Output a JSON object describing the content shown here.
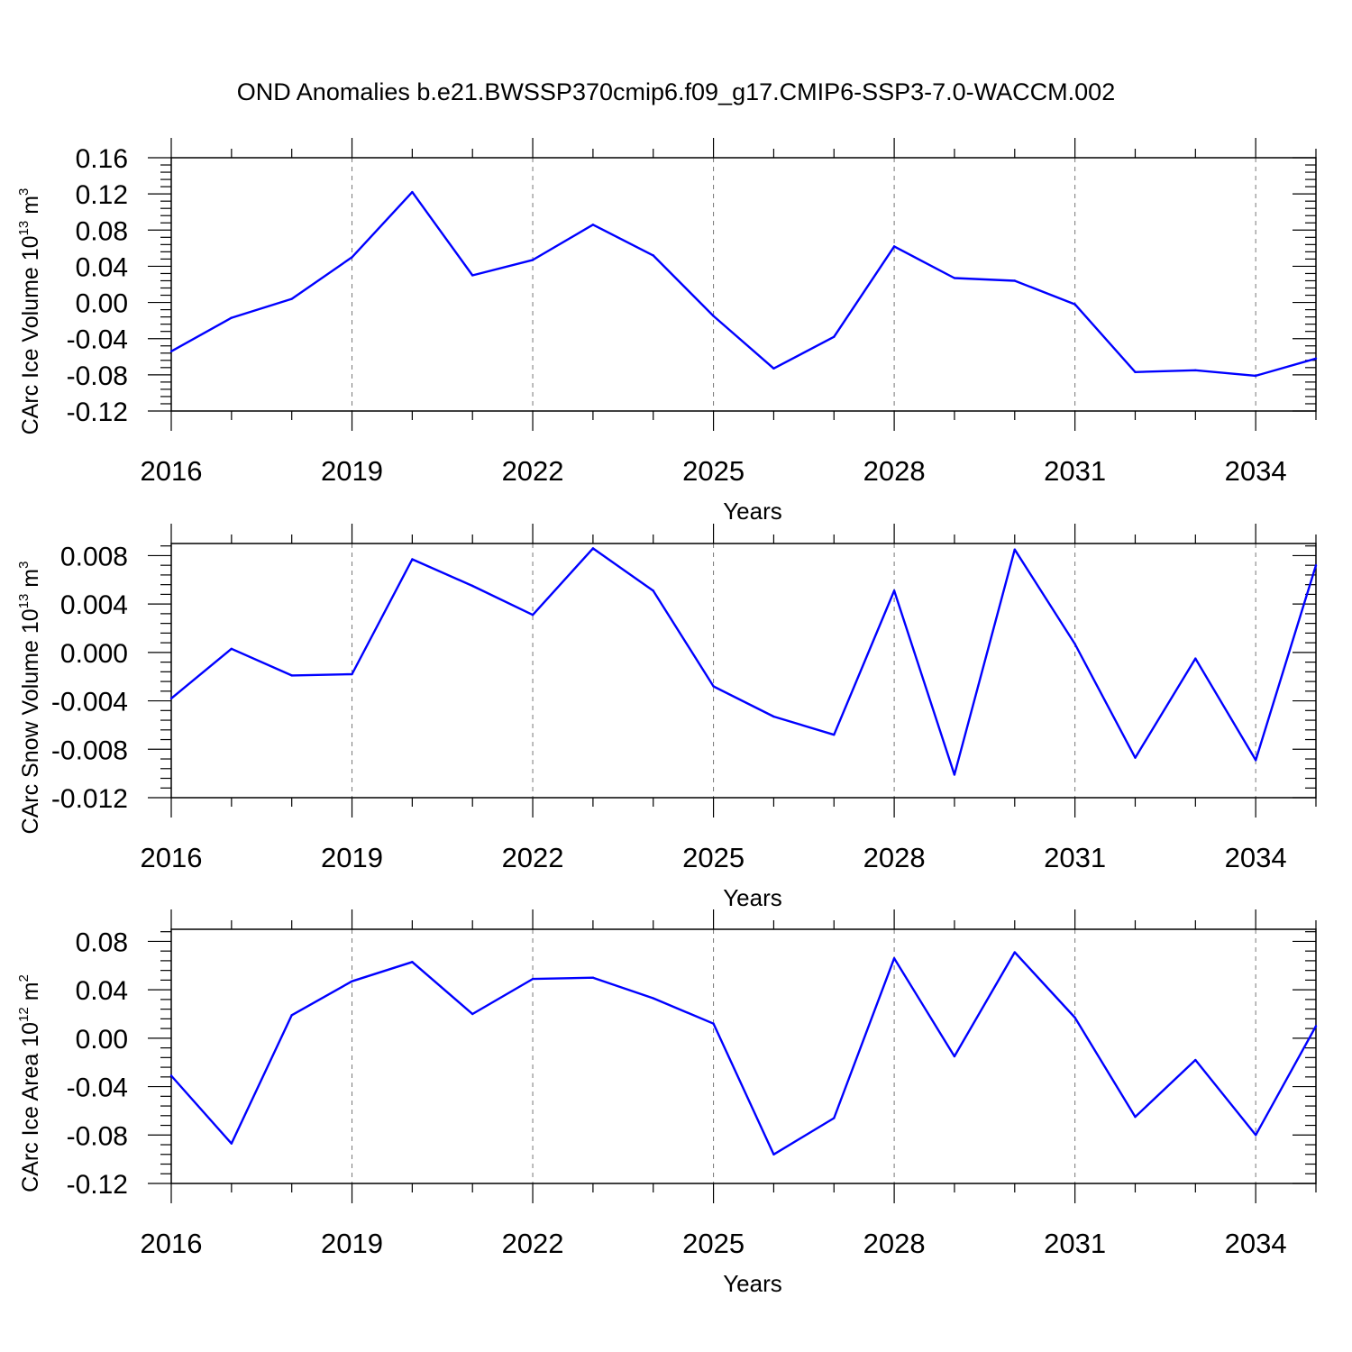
{
  "title": "OND Anomalies b.e21.BWSSP370cmip6.f09_g17.CMIP6-SSP3-7.0-WACCM.002",
  "line_color": "#0000ff",
  "chart_data": [
    {
      "type": "line",
      "ylabel_prefix": "CArc Ice Volume 10",
      "ylabel_exp": "13",
      "ylabel_unit": " m",
      "ylabel_unit_exp": "3",
      "xlabel": "Years",
      "xlim": [
        2016,
        2035
      ],
      "ylim": [
        -0.12,
        0.16
      ],
      "yticks": [
        -0.12,
        -0.08,
        -0.04,
        0.0,
        0.04,
        0.08,
        0.12,
        0.16
      ],
      "ytick_labels": [
        "-0.12",
        "-0.08",
        "-0.04",
        "0.00",
        "0.04",
        "0.08",
        "0.12",
        "0.16"
      ],
      "xticks": [
        2016,
        2019,
        2022,
        2025,
        2028,
        2031,
        2034
      ],
      "xtick_labels": [
        "2016",
        "2019",
        "2022",
        "2025",
        "2028",
        "2031",
        "2034"
      ],
      "grid": "x-dashed",
      "x": [
        2016,
        2017,
        2018,
        2019,
        2020,
        2021,
        2022,
        2023,
        2024,
        2025,
        2026,
        2027,
        2028,
        2029,
        2030,
        2031,
        2032,
        2033,
        2034,
        2035
      ],
      "values": [
        -0.054,
        -0.017,
        0.004,
        0.05,
        0.122,
        0.03,
        0.047,
        0.086,
        0.052,
        -0.015,
        -0.073,
        -0.038,
        0.062,
        0.027,
        0.024,
        -0.002,
        -0.077,
        -0.075,
        -0.081,
        -0.062
      ]
    },
    {
      "type": "line",
      "ylabel_prefix": "CArc Snow Volume 10",
      "ylabel_exp": "13",
      "ylabel_unit": " m",
      "ylabel_unit_exp": "3",
      "xlabel": "Years",
      "xlim": [
        2016,
        2035
      ],
      "ylim": [
        -0.012,
        0.009
      ],
      "yticks": [
        -0.012,
        -0.008,
        -0.004,
        0.0,
        0.004,
        0.008
      ],
      "ytick_labels": [
        "-0.012",
        "-0.008",
        "-0.004",
        "0.000",
        "0.004",
        "0.008"
      ],
      "xticks": [
        2016,
        2019,
        2022,
        2025,
        2028,
        2031,
        2034
      ],
      "xtick_labels": [
        "2016",
        "2019",
        "2022",
        "2025",
        "2028",
        "2031",
        "2034"
      ],
      "grid": "x-dashed",
      "x": [
        2016,
        2017,
        2018,
        2019,
        2020,
        2021,
        2022,
        2023,
        2024,
        2025,
        2026,
        2027,
        2028,
        2029,
        2030,
        2031,
        2032,
        2033,
        2034,
        2035
      ],
      "values": [
        -0.0038,
        0.0003,
        -0.0019,
        -0.0018,
        0.0077,
        0.0055,
        0.0031,
        0.0086,
        0.0051,
        -0.0028,
        -0.0053,
        -0.0068,
        0.0051,
        -0.0101,
        0.0085,
        0.0007,
        -0.0087,
        -0.0005,
        -0.0089,
        0.0072
      ]
    },
    {
      "type": "line",
      "ylabel_prefix": "CArc Ice Area 10",
      "ylabel_exp": "12",
      "ylabel_unit": " m",
      "ylabel_unit_exp": "2",
      "xlabel": "Years",
      "xlim": [
        2016,
        2035
      ],
      "ylim": [
        -0.12,
        0.09
      ],
      "yticks": [
        -0.12,
        -0.08,
        -0.04,
        0.0,
        0.04,
        0.08
      ],
      "ytick_labels": [
        "-0.12",
        "-0.08",
        "-0.04",
        "0.00",
        "0.04",
        "0.08"
      ],
      "xticks": [
        2016,
        2019,
        2022,
        2025,
        2028,
        2031,
        2034
      ],
      "xtick_labels": [
        "2016",
        "2019",
        "2022",
        "2025",
        "2028",
        "2031",
        "2034"
      ],
      "grid": "x-dashed",
      "x": [
        2016,
        2017,
        2018,
        2019,
        2020,
        2021,
        2022,
        2023,
        2024,
        2025,
        2026,
        2027,
        2028,
        2029,
        2030,
        2031,
        2032,
        2033,
        2034,
        2035
      ],
      "values": [
        -0.031,
        -0.087,
        0.019,
        0.047,
        0.063,
        0.02,
        0.049,
        0.05,
        0.033,
        0.012,
        -0.096,
        -0.066,
        0.066,
        -0.015,
        0.071,
        0.017,
        -0.065,
        -0.018,
        -0.08,
        0.01
      ]
    }
  ]
}
